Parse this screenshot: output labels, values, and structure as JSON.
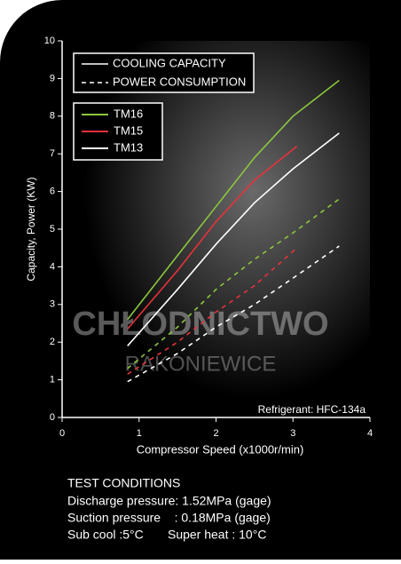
{
  "chart_data": {
    "type": "line",
    "xlabel": "Compressor Speed (x1000r/min)",
    "ylabel": "Capacity, Power (KW)",
    "xlim": [
      0,
      4
    ],
    "xticks": [
      0,
      1,
      2,
      3,
      4
    ],
    "ylim": [
      0,
      10
    ],
    "yticks": [
      0,
      1,
      2,
      3,
      4,
      5,
      6,
      7,
      8,
      9,
      10
    ],
    "line_styles": [
      "COOLING CAPACITY",
      "POWER CONSUMPTION"
    ],
    "series": [
      {
        "name": "TM16",
        "color": "#8dc63f",
        "x": [
          0.85,
          1.5,
          2,
          2.5,
          3,
          3.6
        ],
        "values": [
          2.6,
          4.3,
          5.6,
          6.9,
          8.0,
          8.95
        ],
        "power": [
          1.3,
          2.4,
          3.4,
          4.2,
          4.9,
          5.8
        ]
      },
      {
        "name": "TM15",
        "color": "#e8323c",
        "x": [
          0.85,
          1.5,
          2,
          2.5,
          3.05
        ],
        "values": [
          2.35,
          3.9,
          5.2,
          6.3,
          7.2
        ],
        "power": [
          1.15,
          2.0,
          2.8,
          3.5,
          4.5
        ]
      },
      {
        "name": "TM13",
        "color": "#ffffff",
        "x": [
          0.85,
          1.5,
          2,
          2.5,
          3,
          3.6
        ],
        "values": [
          1.9,
          3.4,
          4.6,
          5.7,
          6.6,
          7.55
        ],
        "power": [
          0.95,
          1.7,
          2.4,
          3.0,
          3.7,
          4.55
        ]
      }
    ],
    "annotation": "Refrigerant: HFC-134a",
    "watermark": [
      "CHŁODNICTWO",
      "RAKONIEWICE"
    ],
    "notes": [
      "TEST CONDITIONS",
      "Discharge pressure: 1.52MPa (gage)",
      "Suction pressure    : 0.18MPa (gage)",
      "Sub cool :5°C       Super heat : 10°C"
    ]
  }
}
